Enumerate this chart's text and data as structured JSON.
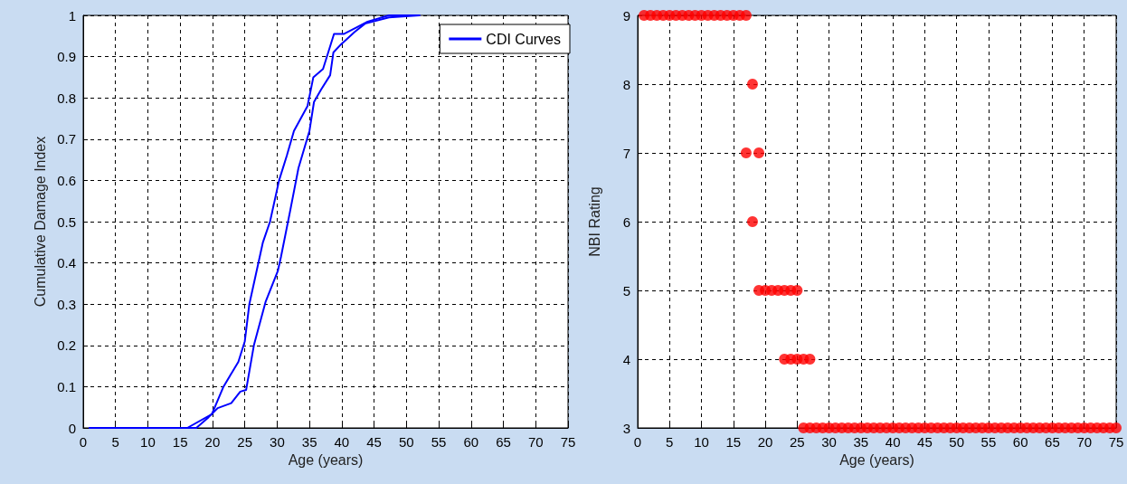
{
  "chart_data": [
    {
      "type": "line",
      "xlabel": "Age (years)",
      "ylabel": "Cumulative Damage Index",
      "xlim": [
        0,
        75
      ],
      "xticks": [
        0,
        5,
        10,
        15,
        20,
        25,
        30,
        35,
        40,
        45,
        50,
        55,
        60,
        65,
        70,
        75
      ],
      "ylim": [
        0,
        1
      ],
      "yticks": [
        0,
        0.1,
        0.2,
        0.3,
        0.4,
        0.5,
        0.6,
        0.7,
        0.8,
        0.9,
        1
      ],
      "grid": true,
      "legend": "top right",
      "marker": "none",
      "line_style": "solid",
      "series": [
        {
          "name": "CDI Curves",
          "color": "#0000ff",
          "x": [
            1,
            16.1,
            19.9,
            21.7,
            24,
            25,
            25.7,
            27.8,
            28.9,
            30.3,
            31.5,
            32.6,
            34.7,
            35.6,
            37.1,
            38.8,
            40.3,
            42.2,
            44,
            47.3,
            52
          ],
          "values": [
            0,
            0,
            0.033,
            0.1,
            0.16,
            0.21,
            0.3,
            0.45,
            0.5,
            0.6,
            0.66,
            0.72,
            0.78,
            0.85,
            0.87,
            0.955,
            0.955,
            0.97,
            0.985,
            1,
            1
          ]
        },
        {
          "color": "#0000ff",
          "x": [
            1,
            17.5,
            19.4,
            20.8,
            22.9,
            24.3,
            25.2,
            26.4,
            28.2,
            30.1,
            30.6,
            32,
            33.3,
            35,
            35.7,
            36.8,
            38.2,
            38.7,
            39.9,
            42,
            43.6,
            47.3,
            52
          ],
          "values": [
            0,
            0,
            0.026,
            0.048,
            0.06,
            0.088,
            0.092,
            0.2,
            0.305,
            0.38,
            0.415,
            0.525,
            0.63,
            0.72,
            0.79,
            0.82,
            0.855,
            0.91,
            0.93,
            0.96,
            0.98,
            0.995,
            1
          ]
        }
      ]
    },
    {
      "type": "scatter",
      "xlabel": "Age (years)",
      "ylabel": "NBI Rating",
      "xlim": [
        0,
        75
      ],
      "xticks": [
        0,
        5,
        10,
        15,
        20,
        25,
        30,
        35,
        40,
        45,
        50,
        55,
        60,
        65,
        70,
        75
      ],
      "ylim": [
        3,
        9
      ],
      "yticks": [
        3,
        4,
        5,
        6,
        7,
        8,
        9
      ],
      "grid": true,
      "marker": "circle",
      "series": [
        {
          "color": "#ff0000",
          "x": [
            1,
            2,
            3,
            4,
            5,
            6,
            7,
            8,
            9,
            10,
            11,
            12,
            13,
            14,
            15,
            16,
            17,
            17,
            18,
            18,
            19,
            19,
            20,
            21,
            22,
            23,
            24,
            25,
            23,
            24,
            25,
            26,
            27,
            26,
            27,
            28,
            29,
            30,
            31,
            32,
            33,
            34,
            35,
            36,
            37,
            38,
            39,
            40,
            41,
            42,
            43,
            44,
            45,
            46,
            47,
            48,
            49,
            50,
            51,
            52,
            53,
            54,
            55,
            56,
            57,
            58,
            59,
            60,
            61,
            62,
            63,
            64,
            65,
            66,
            67,
            68,
            69,
            70,
            71,
            72,
            73,
            74,
            75
          ],
          "values": [
            9,
            9,
            9,
            9,
            9,
            9,
            9,
            9,
            9,
            9,
            9,
            9,
            9,
            9,
            9,
            9,
            9,
            7,
            8,
            6,
            7,
            5,
            5,
            5,
            5,
            5,
            5,
            5,
            4,
            4,
            4,
            4,
            4,
            3,
            3,
            3,
            3,
            3,
            3,
            3,
            3,
            3,
            3,
            3,
            3,
            3,
            3,
            3,
            3,
            3,
            3,
            3,
            3,
            3,
            3,
            3,
            3,
            3,
            3,
            3,
            3,
            3,
            3,
            3,
            3,
            3,
            3,
            3,
            3,
            3,
            3,
            3,
            3,
            3,
            3,
            3,
            3,
            3,
            3,
            3,
            3,
            3,
            3
          ]
        }
      ]
    }
  ]
}
